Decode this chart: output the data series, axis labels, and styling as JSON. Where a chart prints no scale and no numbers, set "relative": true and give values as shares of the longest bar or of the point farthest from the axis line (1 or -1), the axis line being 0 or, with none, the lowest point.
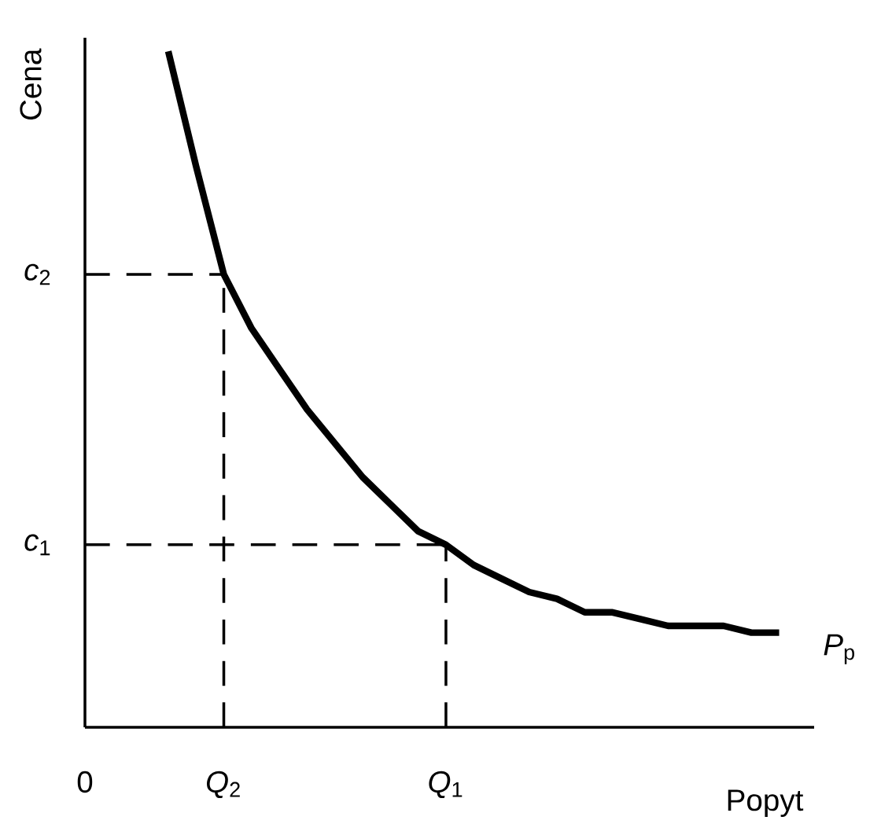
{
  "chart_data": {
    "type": "line",
    "relative": true,
    "xlabel": "Popyt",
    "ylabel": "Cena",
    "categories": [
      "0",
      null,
      null,
      null,
      null,
      "*Q*$_{2}$",
      null,
      null,
      null,
      null,
      null,
      null,
      null,
      "*Q*$_{1}$",
      null,
      null,
      null,
      null,
      null,
      null,
      null,
      null,
      null,
      null,
      null,
      null
    ],
    "line_style": "solid",
    "ref_lines": [
      {
        "axis": "x",
        "value": "*Q*$_{2}$",
        "color": "#000000",
        "line_style": "dashed"
      },
      {
        "axis": "x",
        "value": "*Q*$_{1}$",
        "color": "#000000",
        "line_style": "dashed"
      }
    ],
    "series": [
      {
        "name": "*P*$_{p}$",
        "color": "#000000",
        "values": [
          null,
          null,
          null,
          1,
          0.83,
          0.67,
          0.59,
          0.53,
          0.47,
          0.42,
          0.37,
          0.33,
          0.29,
          0.27,
          0.24,
          0.22,
          0.2,
          0.19,
          0.17,
          0.17,
          0.16,
          0.15,
          0.15,
          0.15,
          0.14,
          0.14
        ]
      },
      {
        "name": "*c*$_{2}$",
        "color": "#000000",
        "line_style": "dashed",
        "values": [
          0.67,
          0.67,
          0.67,
          0.67,
          0.67,
          0.67,
          null,
          null,
          null,
          null,
          null,
          null,
          null,
          null,
          null,
          null,
          null,
          null,
          null,
          null,
          null,
          null,
          null,
          null,
          null,
          null
        ]
      },
      {
        "name": "*c*$_{1}$",
        "color": "#000000",
        "line_style": "dashed",
        "values": [
          0.27,
          0.27,
          0.27,
          0.27,
          0.27,
          0.27,
          0.27,
          0.27,
          0.27,
          0.27,
          0.27,
          0.27,
          0.27,
          0.27,
          null,
          null,
          null,
          null,
          null,
          null,
          null,
          null,
          null,
          null,
          null,
          null
        ]
      }
    ]
  }
}
